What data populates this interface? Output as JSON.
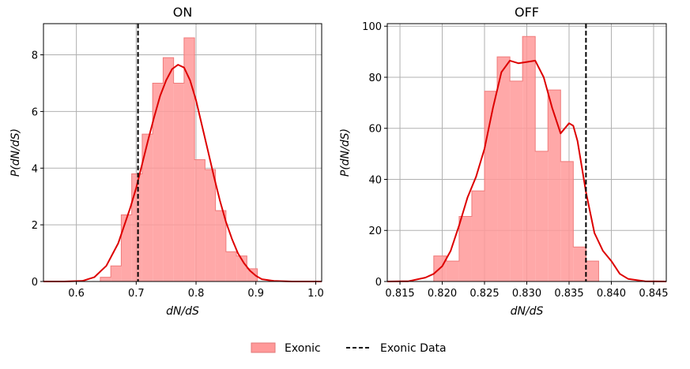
{
  "chart_data": [
    {
      "type": "histogram",
      "title": "ON",
      "xlabel": "dN/dS",
      "ylabel": "P(dN/dS)",
      "xlim": [
        0.545,
        1.01
      ],
      "ylim": [
        0,
        9.1
      ],
      "xticks": [
        0.6,
        0.7,
        0.8,
        0.9,
        1.0
      ],
      "xtick_labels": [
        "0.6",
        "0.7",
        "0.8",
        "0.9",
        "1.0"
      ],
      "yticks": [
        0,
        2,
        4,
        6,
        8
      ],
      "ytick_labels": [
        "0",
        "2",
        "4",
        "6",
        "8"
      ],
      "grid": true,
      "bin_edges": [
        0.64,
        0.6575,
        0.675,
        0.6925,
        0.71,
        0.7275,
        0.745,
        0.7625,
        0.78,
        0.7975,
        0.815,
        0.8325,
        0.85,
        0.8675,
        0.885,
        0.9025,
        0.92
      ],
      "bin_values": [
        0.15,
        0.55,
        2.35,
        3.8,
        5.2,
        7.0,
        7.9,
        7.0,
        8.6,
        4.3,
        3.95,
        2.5,
        1.05,
        0.9,
        0.45,
        0.0
      ],
      "kde_x": [
        0.545,
        0.58,
        0.61,
        0.63,
        0.65,
        0.67,
        0.69,
        0.7,
        0.71,
        0.72,
        0.73,
        0.74,
        0.75,
        0.76,
        0.77,
        0.78,
        0.79,
        0.8,
        0.81,
        0.82,
        0.83,
        0.84,
        0.85,
        0.86,
        0.87,
        0.88,
        0.89,
        0.9,
        0.91,
        0.93,
        0.96,
        1.01
      ],
      "kde_y": [
        0.0,
        0.0,
        0.02,
        0.15,
        0.55,
        1.35,
        2.6,
        3.3,
        4.15,
        5.0,
        5.8,
        6.55,
        7.1,
        7.5,
        7.65,
        7.55,
        7.1,
        6.4,
        5.5,
        4.6,
        3.7,
        2.85,
        2.1,
        1.5,
        1.0,
        0.65,
        0.38,
        0.2,
        0.08,
        0.02,
        0.0,
        0.0
      ],
      "data_line": 0.703,
      "bar_color": "#ff9999",
      "line_color": "#dd0000"
    },
    {
      "type": "histogram",
      "title": "OFF",
      "xlabel": "dN/dS",
      "ylabel": "P(dN/dS)",
      "xlim": [
        0.8135,
        0.8465
      ],
      "ylim": [
        0,
        101
      ],
      "xticks": [
        0.815,
        0.82,
        0.825,
        0.83,
        0.835,
        0.84,
        0.845
      ],
      "xtick_labels": [
        "0.815",
        "0.820",
        "0.825",
        "0.830",
        "0.835",
        "0.840",
        "0.845"
      ],
      "yticks": [
        0,
        20,
        40,
        60,
        80,
        100
      ],
      "ytick_labels": [
        "0",
        "20",
        "40",
        "60",
        "80",
        "100"
      ],
      "grid": true,
      "bin_edges": [
        0.819,
        0.8205,
        0.822,
        0.8235,
        0.825,
        0.8265,
        0.828,
        0.8295,
        0.831,
        0.8325,
        0.834,
        0.8355,
        0.837,
        0.8385,
        0.84
      ],
      "bin_values": [
        10,
        8,
        25.5,
        35.5,
        74.5,
        88,
        78.5,
        96,
        51,
        75,
        47,
        13.5,
        8,
        0
      ],
      "kde_x": [
        0.8135,
        0.816,
        0.818,
        0.819,
        0.82,
        0.821,
        0.822,
        0.823,
        0.824,
        0.825,
        0.826,
        0.827,
        0.828,
        0.829,
        0.83,
        0.831,
        0.832,
        0.833,
        0.834,
        0.835,
        0.8355,
        0.836,
        0.837,
        0.838,
        0.839,
        0.84,
        0.841,
        0.842,
        0.844,
        0.8465
      ],
      "kde_y": [
        0.0,
        0.1,
        1.5,
        3.0,
        6.0,
        12.0,
        22.0,
        33.0,
        41.0,
        52.0,
        68.0,
        82.0,
        86.5,
        85.5,
        86.0,
        86.5,
        80.0,
        68.0,
        58.0,
        62.0,
        61.0,
        55.0,
        35.0,
        19.0,
        12.0,
        8.0,
        3.0,
        1.0,
        0.1,
        0.0
      ],
      "data_line": 0.837,
      "bar_color": "#ff9999",
      "line_color": "#dd0000"
    }
  ],
  "legend": {
    "placement": "bottom-center",
    "entries": [
      {
        "label": "Exonic",
        "kind": "patch"
      },
      {
        "label": "Exonic Data",
        "kind": "dashed-line"
      }
    ]
  }
}
